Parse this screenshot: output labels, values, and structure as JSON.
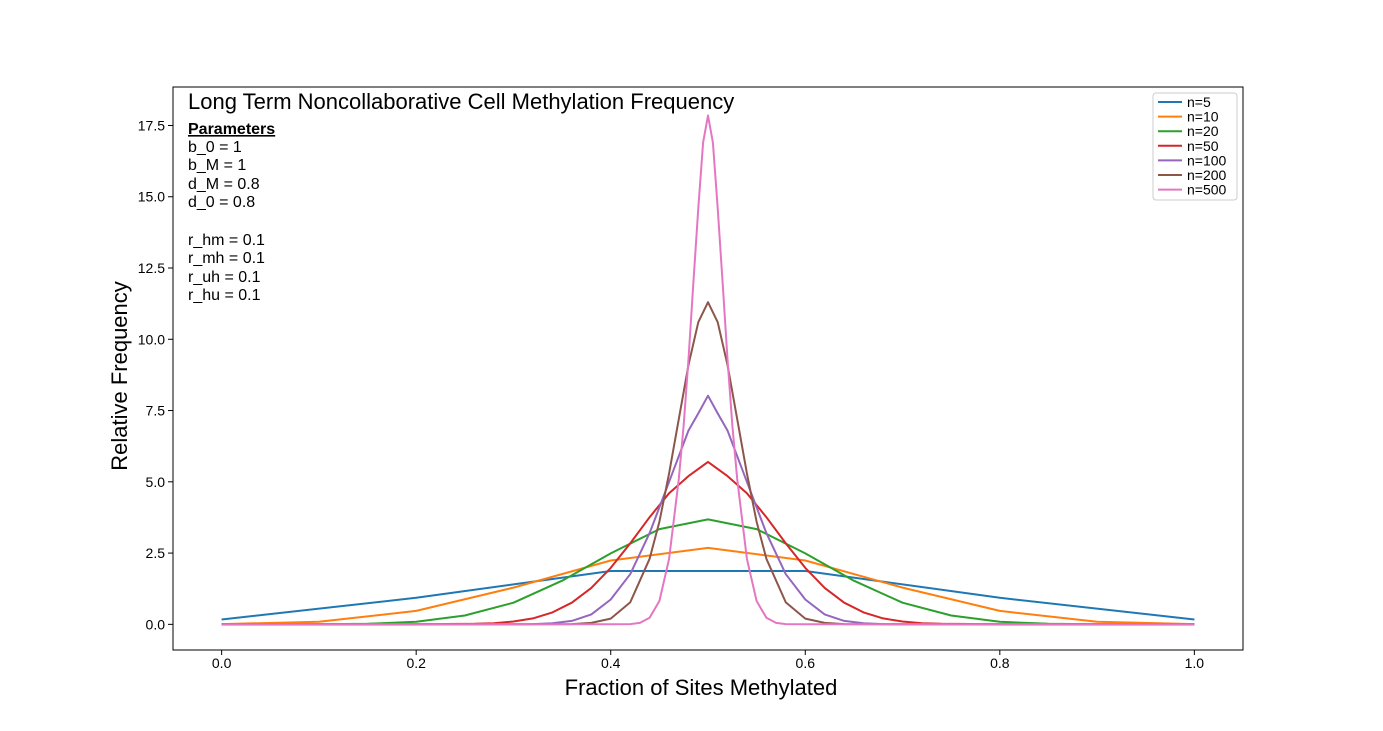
{
  "chart_data": {
    "type": "line",
    "title": "Long Term Noncollaborative Cell Methylation Frequency",
    "xlabel": "Fraction of Sites Methylated",
    "ylabel": "Relative Frequency",
    "xlim": [
      -0.05,
      1.05
    ],
    "ylim": [
      -0.9,
      18.85
    ],
    "x_ticks": [
      0.0,
      0.2,
      0.4,
      0.6,
      0.8,
      1.0
    ],
    "x_tick_labels": [
      "0.0",
      "0.2",
      "0.4",
      "0.6",
      "0.8",
      "1.0"
    ],
    "y_ticks": [
      0.0,
      2.5,
      5.0,
      7.5,
      10.0,
      12.5,
      15.0,
      17.5
    ],
    "y_tick_labels": [
      "0.0",
      "2.5",
      "5.0",
      "7.5",
      "10.0",
      "12.5",
      "15.0",
      "17.5"
    ],
    "grid": false,
    "legend_position": "top-right",
    "parameters": {
      "heading": "Parameters",
      "lines": [
        "b_0 = 1",
        "b_M = 1",
        "d_M = 0.8",
        "d_0 = 0.8",
        "",
        "r_hm = 0.1",
        "r_mh = 0.1",
        "r_uh = 0.1",
        "r_hu = 0.1"
      ]
    },
    "series": [
      {
        "name": "n=5",
        "color": "#1f77b4",
        "x": [
          0.0,
          0.2,
          0.4,
          0.6,
          0.8,
          1.0
        ],
        "values": [
          0.17,
          0.93,
          1.87,
          1.87,
          0.93,
          0.17
        ]
      },
      {
        "name": "n=10",
        "color": "#ff7f0e",
        "x": [
          0.0,
          0.1,
          0.2,
          0.3,
          0.4,
          0.5,
          0.6,
          0.7,
          0.8,
          0.9,
          1.0
        ],
        "values": [
          0.01,
          0.09,
          0.47,
          1.29,
          2.24,
          2.68,
          2.24,
          1.29,
          0.47,
          0.09,
          0.01
        ]
      },
      {
        "name": "n=20",
        "color": "#2ca02c",
        "x": [
          0.0,
          0.05,
          0.1,
          0.15,
          0.2,
          0.25,
          0.3,
          0.35,
          0.4,
          0.45,
          0.5,
          0.55,
          0.6,
          0.65,
          0.7,
          0.75,
          0.8,
          0.85,
          0.9,
          0.95,
          1.0
        ],
        "values": [
          0.0,
          0.0,
          0.0,
          0.02,
          0.09,
          0.31,
          0.76,
          1.53,
          2.49,
          3.34,
          3.68,
          3.34,
          2.49,
          1.53,
          0.76,
          0.31,
          0.09,
          0.02,
          0.0,
          0.0,
          0.0
        ]
      },
      {
        "name": "n=50",
        "color": "#d62728",
        "x": [
          0.0,
          0.1,
          0.2,
          0.26,
          0.28,
          0.3,
          0.32,
          0.34,
          0.36,
          0.38,
          0.4,
          0.42,
          0.44,
          0.46,
          0.48,
          0.5,
          0.52,
          0.54,
          0.56,
          0.58,
          0.6,
          0.62,
          0.64,
          0.66,
          0.68,
          0.7,
          0.72,
          0.74,
          0.8,
          0.9,
          1.0
        ],
        "values": [
          0.0,
          0.0,
          0.0,
          0.02,
          0.04,
          0.1,
          0.21,
          0.42,
          0.76,
          1.28,
          1.98,
          2.84,
          3.76,
          4.6,
          5.2,
          5.7,
          5.2,
          4.6,
          3.76,
          2.84,
          1.98,
          1.28,
          0.76,
          0.42,
          0.21,
          0.1,
          0.04,
          0.02,
          0.0,
          0.0,
          0.0
        ]
      },
      {
        "name": "n=100",
        "color": "#9467bd",
        "x": [
          0.0,
          0.2,
          0.3,
          0.32,
          0.34,
          0.36,
          0.38,
          0.4,
          0.42,
          0.44,
          0.46,
          0.48,
          0.49,
          0.5,
          0.51,
          0.52,
          0.54,
          0.56,
          0.58,
          0.6,
          0.62,
          0.64,
          0.66,
          0.68,
          0.7,
          0.8,
          1.0
        ],
        "values": [
          0.0,
          0.0,
          0.0,
          0.01,
          0.04,
          0.12,
          0.35,
          0.87,
          1.76,
          3.2,
          5.0,
          6.8,
          7.4,
          8.02,
          7.4,
          6.8,
          5.0,
          3.2,
          1.76,
          0.87,
          0.35,
          0.12,
          0.04,
          0.01,
          0.0,
          0.0,
          0.0
        ]
      },
      {
        "name": "n=200",
        "color": "#8c564b",
        "x": [
          0.0,
          0.3,
          0.36,
          0.38,
          0.4,
          0.42,
          0.44,
          0.45,
          0.46,
          0.47,
          0.48,
          0.49,
          0.5,
          0.51,
          0.52,
          0.53,
          0.54,
          0.55,
          0.56,
          0.58,
          0.6,
          0.62,
          0.64,
          0.7,
          1.0
        ],
        "values": [
          0.0,
          0.0,
          0.01,
          0.05,
          0.2,
          0.77,
          2.3,
          3.6,
          5.3,
          7.2,
          9.1,
          10.6,
          11.3,
          10.6,
          9.1,
          7.2,
          5.3,
          3.6,
          2.3,
          0.77,
          0.2,
          0.05,
          0.01,
          0.0,
          0.0
        ]
      },
      {
        "name": "n=500",
        "color": "#e377c2",
        "x": [
          0.0,
          0.4,
          0.42,
          0.43,
          0.44,
          0.45,
          0.46,
          0.47,
          0.475,
          0.48,
          0.485,
          0.49,
          0.495,
          0.5,
          0.505,
          0.51,
          0.515,
          0.52,
          0.525,
          0.53,
          0.54,
          0.55,
          0.56,
          0.57,
          0.58,
          0.6,
          1.0
        ],
        "values": [
          0.0,
          0.0,
          0.01,
          0.05,
          0.23,
          0.82,
          2.3,
          5.1,
          7.0,
          9.3,
          12.0,
          14.6,
          16.9,
          17.85,
          16.9,
          14.6,
          12.0,
          9.3,
          7.0,
          5.1,
          2.3,
          0.82,
          0.23,
          0.05,
          0.01,
          0.0,
          0.0
        ]
      }
    ]
  }
}
